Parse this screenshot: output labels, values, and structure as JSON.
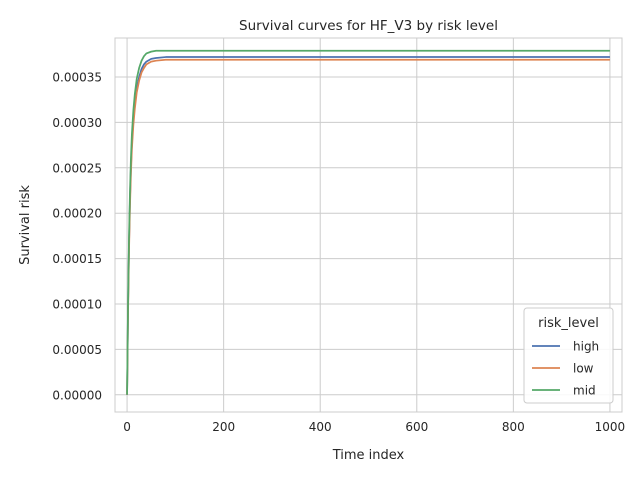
{
  "chart_data": {
    "type": "line",
    "title": "Survival curves for HF_V3 by risk level",
    "xlabel": "Time index",
    "ylabel": "Survival risk",
    "xlim": [
      -25,
      1025
    ],
    "ylim": [
      -1.9e-05,
      0.000393
    ],
    "xticks": [
      0,
      200,
      400,
      600,
      800,
      1000
    ],
    "xtick_labels": [
      "0",
      "200",
      "400",
      "600",
      "800",
      "1000"
    ],
    "yticks": [
      0,
      5e-05,
      0.0001,
      0.00015,
      0.0002,
      0.00025,
      0.0003,
      0.00035
    ],
    "ytick_labels": [
      "0.00000",
      "0.00005",
      "0.00010",
      "0.00015",
      "0.00020",
      "0.00025",
      "0.00030",
      "0.00035"
    ],
    "grid": true,
    "legend": {
      "title": "risk_level",
      "position": "lower-right"
    },
    "series": [
      {
        "name": "high",
        "color": "#4c72b0",
        "x": [
          0,
          2,
          4,
          6,
          8,
          10,
          13,
          16,
          20,
          25,
          30,
          35,
          40,
          50,
          60,
          80,
          100,
          200,
          400,
          600,
          800,
          1000
        ],
        "y": [
          0,
          9.5e-05,
          0.000165,
          0.000215,
          0.000251,
          0.000277,
          0.000303,
          0.000321,
          0.000338,
          0.00035,
          0.000359,
          0.000364,
          0.000367,
          0.00037,
          0.000371,
          0.000372,
          0.000372,
          0.000372,
          0.000372,
          0.000372,
          0.000372,
          0.000372
        ]
      },
      {
        "name": "low",
        "color": "#dd8452",
        "x": [
          0,
          2,
          4,
          6,
          8,
          10,
          13,
          16,
          20,
          25,
          30,
          35,
          40,
          50,
          60,
          80,
          100,
          200,
          400,
          600,
          800,
          1000
        ],
        "y": [
          0,
          9e-05,
          0.000158,
          0.000208,
          0.000244,
          0.000271,
          0.000297,
          0.000315,
          0.000333,
          0.000346,
          0.000355,
          0.00036,
          0.000364,
          0.000367,
          0.000368,
          0.000369,
          0.000369,
          0.000369,
          0.000369,
          0.000369,
          0.000369,
          0.000369
        ]
      },
      {
        "name": "mid",
        "color": "#55a868",
        "x": [
          0,
          2,
          4,
          6,
          8,
          10,
          13,
          16,
          20,
          25,
          30,
          35,
          40,
          50,
          60,
          80,
          100,
          200,
          400,
          600,
          800,
          1000
        ],
        "y": [
          0,
          0.0001,
          0.000172,
          0.000223,
          0.00026,
          0.000287,
          0.000313,
          0.000331,
          0.000348,
          0.00036,
          0.000368,
          0.000373,
          0.000376,
          0.000378,
          0.000379,
          0.000379,
          0.000379,
          0.000379,
          0.000379,
          0.000379,
          0.000379,
          0.000379
        ]
      }
    ]
  }
}
